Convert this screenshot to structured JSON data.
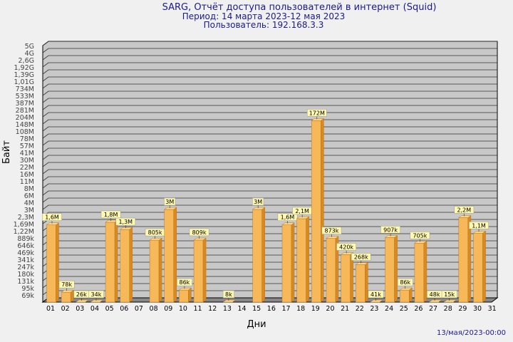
{
  "header": {
    "title": "SARG, Отчёт доступа пользователей в интернет (Squid)",
    "period": "Период: 14 марта 2023-12 мая 2023",
    "user": "Пользователь: 192.168.3.3"
  },
  "footer": {
    "timestamp": "13/мая/2023-00:00"
  },
  "colors": {
    "bar_front": "#f7b85a",
    "bar_side": "#d88a20",
    "bar_top": "#fcd68c",
    "plot_bg": "#c8c8c8",
    "label_bg": "#fff8b0",
    "title": "#1a1a8c"
  },
  "chart_data": {
    "type": "bar",
    "xlabel": "Дни",
    "ylabel": "Байт",
    "y_scale": "log",
    "yticks": [
      "5G",
      "4G",
      "2,6G",
      "1,92G",
      "1,39G",
      "1,01G",
      "734M",
      "533M",
      "387M",
      "281M",
      "204M",
      "148M",
      "108M",
      "78M",
      "57M",
      "41M",
      "30M",
      "22M",
      "16M",
      "11M",
      "8M",
      "6M",
      "4M",
      "3M",
      "2,3M",
      "1,69M",
      "1,22M",
      "889k",
      "646k",
      "469k",
      "341k",
      "247k",
      "180k",
      "131k",
      "95k",
      "69k"
    ],
    "categories": [
      "01",
      "02",
      "03",
      "04",
      "05",
      "06",
      "07",
      "08",
      "09",
      "10",
      "11",
      "12",
      "13",
      "14",
      "15",
      "16",
      "17",
      "18",
      "19",
      "20",
      "21",
      "22",
      "23",
      "24",
      "25",
      "26",
      "27",
      "28",
      "29",
      "30",
      "31"
    ],
    "values": [
      1600000,
      78000,
      26000,
      34000,
      1800000,
      1300000,
      null,
      805000,
      3000000,
      86000,
      809000,
      null,
      8000,
      null,
      3000000,
      null,
      1600000,
      2100000,
      172000000,
      873000,
      420000,
      268000,
      41000,
      907000,
      86000,
      705000,
      48000,
      15000,
      2200000,
      1100000,
      null
    ],
    "data_labels": [
      "1,6M",
      "78k",
      "26k",
      "34k",
      "1,8M",
      "1,3M",
      "",
      "805k",
      "3M",
      "86k",
      "809k",
      "",
      "8k",
      "",
      "3M",
      "",
      "1,6M",
      "2,1M",
      "172M",
      "873k",
      "420k",
      "268k",
      "41k",
      "907k",
      "86k",
      "705k",
      "48k",
      "15k",
      "2,2M",
      "1,1M",
      ""
    ]
  }
}
